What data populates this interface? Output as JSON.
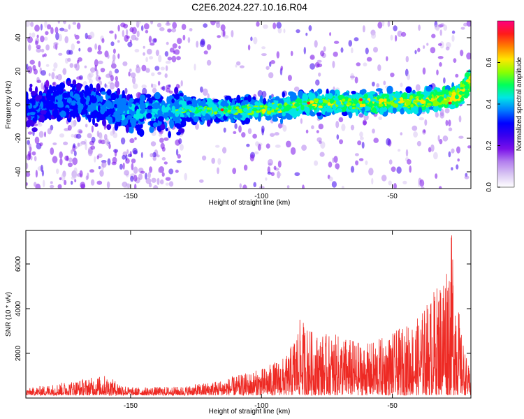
{
  "title": "C2E6.2024.227.10.16.R04",
  "colors": {
    "snr_line": "#ee2a24",
    "colormap": [
      "#ffffff",
      "#d9c6f3",
      "#b37fee",
      "#7a10ea",
      "#3a00ee",
      "#0000ff",
      "#007bff",
      "#00e6e6",
      "#00ff5a",
      "#8cff00",
      "#ffe600",
      "#ff8000",
      "#ff1a1a",
      "#ff007f"
    ]
  },
  "chart_data": [
    {
      "type": "heatmap",
      "title": "",
      "xlabel": "Height of straight line (km)",
      "ylabel": "Frequency (Hz)",
      "xlim": [
        -190,
        -20
      ],
      "ylim": [
        -50,
        50
      ],
      "xticks": [
        -150,
        -100,
        -50
      ],
      "yticks": [
        -40,
        -20,
        0,
        20,
        40
      ],
      "colorbar": {
        "label": "Normalized spectral amplitude",
        "range": [
          0.0,
          0.8
        ],
        "ticks": [
          0.0,
          0.2,
          0.4,
          0.6
        ]
      },
      "ridge_center_hz": [
        {
          "x": -190,
          "y": -2
        },
        {
          "x": -170,
          "y": 2
        },
        {
          "x": -150,
          "y": -5
        },
        {
          "x": -130,
          "y": -3
        },
        {
          "x": -100,
          "y": -3
        },
        {
          "x": -80,
          "y": 1
        },
        {
          "x": -60,
          "y": 1
        },
        {
          "x": -40,
          "y": 2
        },
        {
          "x": -25,
          "y": 5
        },
        {
          "x": -20,
          "y": 15
        }
      ]
    },
    {
      "type": "line",
      "title": "",
      "xlabel": "Height of straight line (km)",
      "ylabel": "SNR (10 * v/v)",
      "xlim": [
        -190,
        -20
      ],
      "ylim": [
        0,
        7500
      ],
      "xticks": [
        -150,
        -100,
        -50
      ],
      "yticks": [
        2000,
        4000,
        6000
      ],
      "series": [
        {
          "envelope": [
            {
              "x": -190,
              "y": 300
            },
            {
              "x": -170,
              "y": 700
            },
            {
              "x": -160,
              "y": 900
            },
            {
              "x": -150,
              "y": 350
            },
            {
              "x": -130,
              "y": 400
            },
            {
              "x": -115,
              "y": 700
            },
            {
              "x": -100,
              "y": 1200
            },
            {
              "x": -90,
              "y": 1800
            },
            {
              "x": -85,
              "y": 3500
            },
            {
              "x": -80,
              "y": 2800
            },
            {
              "x": -70,
              "y": 2700
            },
            {
              "x": -60,
              "y": 2300
            },
            {
              "x": -50,
              "y": 2800
            },
            {
              "x": -40,
              "y": 3500
            },
            {
              "x": -32,
              "y": 5200
            },
            {
              "x": -27,
              "y": 7400
            },
            {
              "x": -24,
              "y": 3000
            },
            {
              "x": -20,
              "y": 800
            }
          ]
        }
      ]
    }
  ]
}
